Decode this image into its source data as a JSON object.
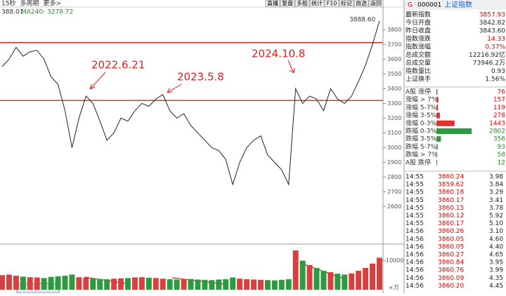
{
  "toolbar": {
    "left": [
      "15秒",
      "多周期",
      "更多>"
    ],
    "buttons": [
      "直播",
      "复盘",
      "多股",
      "统计",
      "F10",
      "标记",
      "自选",
      "返回"
    ]
  },
  "chart_info": {
    "last": "388.01",
    "ma": "MA240: 3278.72"
  },
  "price_chart": {
    "type": "line",
    "color": "#222222",
    "close": [
      3550,
      3600,
      3680,
      3620,
      3650,
      3660,
      3600,
      3480,
      3430,
      3250,
      3000,
      3200,
      3350,
      3300,
      3180,
      3050,
      3100,
      3200,
      3180,
      3250,
      3300,
      3280,
      3330,
      3360,
      3250,
      3200,
      3230,
      3150,
      3100,
      3050,
      3000,
      2980,
      2920,
      2750,
      2900,
      3000,
      3050,
      3080,
      2950,
      2900,
      2850,
      2750,
      3400,
      3300,
      3350,
      3330,
      3250,
      3400,
      3330,
      3300,
      3350,
      3450,
      3560,
      3700,
      3860
    ],
    "ylim": [
      2360,
      3930
    ],
    "yticks": [
      2600,
      2700,
      2800,
      2900,
      3000,
      3100,
      3200,
      3300,
      3400,
      3500,
      3600,
      3700,
      3800
    ],
    "levels": [
      3712,
      3320
    ],
    "annotations": [
      "2022.6.21",
      "2023.5.8",
      "2024.10.8",
      "3888.60"
    ]
  },
  "volume_chart": {
    "type": "bar",
    "unit": "×万",
    "values": [
      5000,
      5200,
      4800,
      4500,
      4300,
      4200,
      4000,
      4400,
      4600,
      4800,
      5200,
      4300,
      4100,
      3900,
      3700,
      3600,
      3800,
      3900,
      4000,
      4200,
      4300,
      4100,
      4000,
      3800,
      3600,
      3500,
      3600,
      3700,
      3500,
      3400,
      3300,
      3500,
      3600,
      4200,
      3800,
      3600,
      3500,
      3400,
      3300,
      3200,
      3400,
      3600,
      13500,
      10000,
      8500,
      7500,
      6500,
      6000,
      5500,
      5200,
      5600,
      6500,
      7500,
      9000,
      11000
    ],
    "ylim": [
      0,
      14000
    ],
    "yticks": [
      10000
    ]
  },
  "panel": {
    "code": "000001",
    "name": "上证指数",
    "quote": [
      [
        "最新指数",
        "3857.93"
      ],
      [
        "今日开盘",
        "3842.82"
      ],
      [
        "昨日收盘",
        "3843.60"
      ],
      [
        "指数涨跌",
        "14.33"
      ],
      [
        "指数涨幅",
        "0.37%"
      ],
      [
        "总成交额",
        "12216.92亿"
      ],
      [
        "总成交量",
        "73946.2万"
      ],
      [
        "指数量比",
        "0.93"
      ],
      [
        "上证换手",
        "1.56%"
      ]
    ],
    "breadth": {
      "labels": [
        "A股 涨停",
        "涨幅 > 7%",
        "涨幅 5-7%",
        "涨幅 3-5%",
        "涨幅 0-3%",
        "跌幅 0-3%",
        "跌幅 3-5%",
        "跌幅 5-7%",
        "跌幅 > 7%",
        "A股 跌停"
      ],
      "values": [
        76,
        157,
        119,
        278,
        1443,
        2802,
        356,
        93,
        58,
        12
      ]
    },
    "ticks": [
      [
        "14:55",
        "3860.24",
        "3.98"
      ],
      [
        "14:55",
        "3859.62",
        "3.84"
      ],
      [
        "14:55",
        "3860.18",
        "3.29"
      ],
      [
        "14:55",
        "3860.17",
        "3.41"
      ],
      [
        "14:55",
        "3860.15",
        "3.78"
      ],
      [
        "14:55",
        "3860.12",
        "5.92"
      ],
      [
        "14:55",
        "3860.17",
        "5.10"
      ],
      [
        "14:56",
        "3860.26",
        "3.10"
      ],
      [
        "14:56",
        "3860.05",
        "4.60"
      ],
      [
        "14:56",
        "3860.05",
        "4.40"
      ],
      [
        "14:56",
        "3860.27",
        "4.65"
      ],
      [
        "14:56",
        "3860.84",
        "3.95"
      ],
      [
        "14:56",
        "3860.76",
        "3.99"
      ],
      [
        "14:56",
        "3860.09",
        "4.35"
      ],
      [
        "14:56",
        "3860.20",
        "4.45"
      ]
    ]
  }
}
